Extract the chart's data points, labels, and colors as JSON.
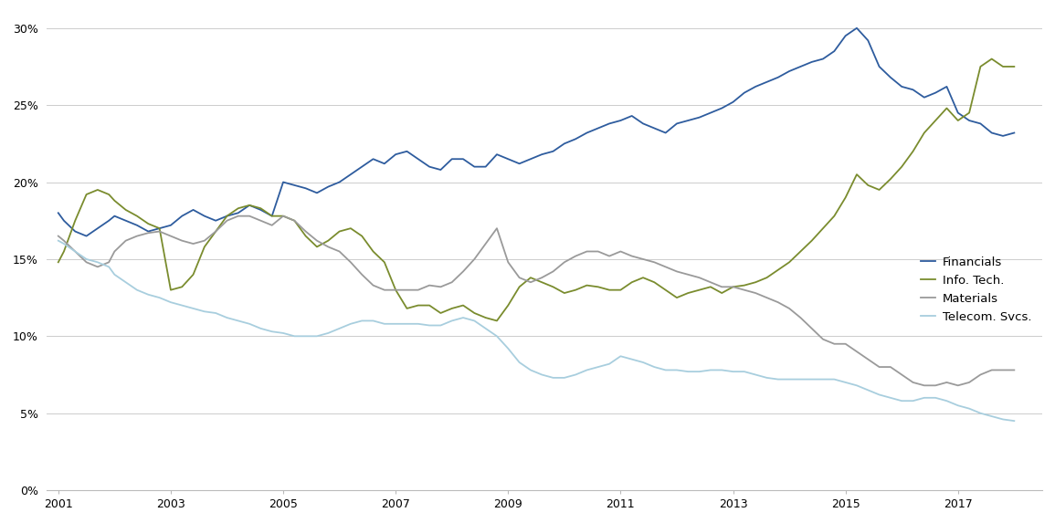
{
  "colors": {
    "Financials": "#2E5C9E",
    "Info. Tech.": "#7A8C2E",
    "Materials": "#9A9A9A",
    "Telecom. Svcs.": "#A8CEDE"
  },
  "legend_labels": [
    "Financials",
    "Info. Tech.",
    "Materials",
    "Telecom. Svcs."
  ],
  "ylim": [
    0.0,
    0.31
  ],
  "yticks": [
    0.0,
    0.05,
    0.1,
    0.15,
    0.2,
    0.25,
    0.3
  ],
  "xticks": [
    2001,
    2003,
    2005,
    2007,
    2009,
    2011,
    2013,
    2015,
    2017
  ],
  "xlim": [
    2000.8,
    2018.5
  ],
  "background_color": "#FFFFFF",
  "grid_color": "#CCCCCC",
  "financials_x": [
    2001.0,
    2001.1,
    2001.3,
    2001.5,
    2001.7,
    2001.9,
    2002.0,
    2002.2,
    2002.4,
    2002.6,
    2002.8,
    2003.0,
    2003.2,
    2003.4,
    2003.6,
    2003.8,
    2004.0,
    2004.2,
    2004.4,
    2004.6,
    2004.8,
    2005.0,
    2005.2,
    2005.4,
    2005.6,
    2005.8,
    2006.0,
    2006.2,
    2006.4,
    2006.6,
    2006.8,
    2007.0,
    2007.2,
    2007.4,
    2007.6,
    2007.8,
    2008.0,
    2008.2,
    2008.4,
    2008.6,
    2008.8,
    2009.0,
    2009.2,
    2009.4,
    2009.6,
    2009.8,
    2010.0,
    2010.2,
    2010.4,
    2010.6,
    2010.8,
    2011.0,
    2011.2,
    2011.4,
    2011.6,
    2011.8,
    2012.0,
    2012.2,
    2012.4,
    2012.6,
    2012.8,
    2013.0,
    2013.2,
    2013.4,
    2013.6,
    2013.8,
    2014.0,
    2014.2,
    2014.4,
    2014.6,
    2014.8,
    2015.0,
    2015.2,
    2015.4,
    2015.6,
    2015.8,
    2016.0,
    2016.2,
    2016.4,
    2016.6,
    2016.8,
    2017.0,
    2017.2,
    2017.4,
    2017.6,
    2017.8,
    2018.0
  ],
  "financials_y": [
    0.18,
    0.175,
    0.168,
    0.165,
    0.17,
    0.175,
    0.178,
    0.175,
    0.172,
    0.168,
    0.17,
    0.172,
    0.178,
    0.182,
    0.178,
    0.175,
    0.178,
    0.18,
    0.185,
    0.182,
    0.178,
    0.2,
    0.198,
    0.196,
    0.193,
    0.197,
    0.2,
    0.205,
    0.21,
    0.215,
    0.212,
    0.218,
    0.22,
    0.215,
    0.21,
    0.208,
    0.215,
    0.215,
    0.21,
    0.21,
    0.218,
    0.215,
    0.212,
    0.215,
    0.218,
    0.22,
    0.225,
    0.228,
    0.232,
    0.235,
    0.238,
    0.24,
    0.243,
    0.238,
    0.235,
    0.232,
    0.238,
    0.24,
    0.242,
    0.245,
    0.248,
    0.252,
    0.258,
    0.262,
    0.265,
    0.268,
    0.272,
    0.275,
    0.278,
    0.28,
    0.285,
    0.295,
    0.3,
    0.292,
    0.275,
    0.268,
    0.262,
    0.26,
    0.255,
    0.258,
    0.262,
    0.245,
    0.24,
    0.238,
    0.232,
    0.23,
    0.232
  ],
  "infotech_x": [
    2001.0,
    2001.1,
    2001.3,
    2001.5,
    2001.7,
    2001.9,
    2002.0,
    2002.2,
    2002.4,
    2002.6,
    2002.8,
    2003.0,
    2003.2,
    2003.4,
    2003.6,
    2003.8,
    2004.0,
    2004.2,
    2004.4,
    2004.6,
    2004.8,
    2005.0,
    2005.2,
    2005.4,
    2005.6,
    2005.8,
    2006.0,
    2006.2,
    2006.4,
    2006.6,
    2006.8,
    2007.0,
    2007.2,
    2007.4,
    2007.6,
    2007.8,
    2008.0,
    2008.2,
    2008.4,
    2008.6,
    2008.8,
    2009.0,
    2009.2,
    2009.4,
    2009.6,
    2009.8,
    2010.0,
    2010.2,
    2010.4,
    2010.6,
    2010.8,
    2011.0,
    2011.2,
    2011.4,
    2011.6,
    2011.8,
    2012.0,
    2012.2,
    2012.4,
    2012.6,
    2012.8,
    2013.0,
    2013.2,
    2013.4,
    2013.6,
    2013.8,
    2014.0,
    2014.2,
    2014.4,
    2014.6,
    2014.8,
    2015.0,
    2015.2,
    2015.4,
    2015.6,
    2015.8,
    2016.0,
    2016.2,
    2016.4,
    2016.6,
    2016.8,
    2017.0,
    2017.2,
    2017.4,
    2017.6,
    2017.8,
    2018.0
  ],
  "infotech_y": [
    0.148,
    0.155,
    0.175,
    0.192,
    0.195,
    0.192,
    0.188,
    0.182,
    0.178,
    0.173,
    0.17,
    0.13,
    0.132,
    0.14,
    0.158,
    0.168,
    0.178,
    0.183,
    0.185,
    0.183,
    0.178,
    0.178,
    0.175,
    0.165,
    0.158,
    0.162,
    0.168,
    0.17,
    0.165,
    0.155,
    0.148,
    0.13,
    0.118,
    0.12,
    0.12,
    0.115,
    0.118,
    0.12,
    0.115,
    0.112,
    0.11,
    0.12,
    0.132,
    0.138,
    0.135,
    0.132,
    0.128,
    0.13,
    0.133,
    0.132,
    0.13,
    0.13,
    0.135,
    0.138,
    0.135,
    0.13,
    0.125,
    0.128,
    0.13,
    0.132,
    0.128,
    0.132,
    0.133,
    0.135,
    0.138,
    0.143,
    0.148,
    0.155,
    0.162,
    0.17,
    0.178,
    0.19,
    0.205,
    0.198,
    0.195,
    0.202,
    0.21,
    0.22,
    0.232,
    0.24,
    0.248,
    0.24,
    0.245,
    0.275,
    0.28,
    0.275,
    0.275
  ],
  "materials_x": [
    2001.0,
    2001.1,
    2001.3,
    2001.5,
    2001.7,
    2001.9,
    2002.0,
    2002.2,
    2002.4,
    2002.6,
    2002.8,
    2003.0,
    2003.2,
    2003.4,
    2003.6,
    2003.8,
    2004.0,
    2004.2,
    2004.4,
    2004.6,
    2004.8,
    2005.0,
    2005.2,
    2005.4,
    2005.6,
    2005.8,
    2006.0,
    2006.2,
    2006.4,
    2006.6,
    2006.8,
    2007.0,
    2007.2,
    2007.4,
    2007.6,
    2007.8,
    2008.0,
    2008.2,
    2008.4,
    2008.6,
    2008.8,
    2009.0,
    2009.2,
    2009.4,
    2009.6,
    2009.8,
    2010.0,
    2010.2,
    2010.4,
    2010.6,
    2010.8,
    2011.0,
    2011.2,
    2011.4,
    2011.6,
    2011.8,
    2012.0,
    2012.2,
    2012.4,
    2012.6,
    2012.8,
    2013.0,
    2013.2,
    2013.4,
    2013.6,
    2013.8,
    2014.0,
    2014.2,
    2014.4,
    2014.6,
    2014.8,
    2015.0,
    2015.2,
    2015.4,
    2015.6,
    2015.8,
    2016.0,
    2016.2,
    2016.4,
    2016.6,
    2016.8,
    2017.0,
    2017.2,
    2017.4,
    2017.6,
    2017.8,
    2018.0
  ],
  "materials_y": [
    0.165,
    0.162,
    0.155,
    0.148,
    0.145,
    0.148,
    0.155,
    0.162,
    0.165,
    0.167,
    0.168,
    0.165,
    0.162,
    0.16,
    0.162,
    0.168,
    0.175,
    0.178,
    0.178,
    0.175,
    0.172,
    0.178,
    0.175,
    0.168,
    0.162,
    0.158,
    0.155,
    0.148,
    0.14,
    0.133,
    0.13,
    0.13,
    0.13,
    0.13,
    0.133,
    0.132,
    0.135,
    0.142,
    0.15,
    0.16,
    0.17,
    0.148,
    0.138,
    0.135,
    0.138,
    0.142,
    0.148,
    0.152,
    0.155,
    0.155,
    0.152,
    0.155,
    0.152,
    0.15,
    0.148,
    0.145,
    0.142,
    0.14,
    0.138,
    0.135,
    0.132,
    0.132,
    0.13,
    0.128,
    0.125,
    0.122,
    0.118,
    0.112,
    0.105,
    0.098,
    0.095,
    0.095,
    0.09,
    0.085,
    0.08,
    0.08,
    0.075,
    0.07,
    0.068,
    0.068,
    0.07,
    0.068,
    0.07,
    0.075,
    0.078,
    0.078,
    0.078
  ],
  "telecom_x": [
    2001.0,
    2001.1,
    2001.3,
    2001.5,
    2001.7,
    2001.9,
    2002.0,
    2002.2,
    2002.4,
    2002.6,
    2002.8,
    2003.0,
    2003.2,
    2003.4,
    2003.6,
    2003.8,
    2004.0,
    2004.2,
    2004.4,
    2004.6,
    2004.8,
    2005.0,
    2005.2,
    2005.4,
    2005.6,
    2005.8,
    2006.0,
    2006.2,
    2006.4,
    2006.6,
    2006.8,
    2007.0,
    2007.2,
    2007.4,
    2007.6,
    2007.8,
    2008.0,
    2008.2,
    2008.4,
    2008.6,
    2008.8,
    2009.0,
    2009.2,
    2009.4,
    2009.6,
    2009.8,
    2010.0,
    2010.2,
    2010.4,
    2010.6,
    2010.8,
    2011.0,
    2011.2,
    2011.4,
    2011.6,
    2011.8,
    2012.0,
    2012.2,
    2012.4,
    2012.6,
    2012.8,
    2013.0,
    2013.2,
    2013.4,
    2013.6,
    2013.8,
    2014.0,
    2014.2,
    2014.4,
    2014.6,
    2014.8,
    2015.0,
    2015.2,
    2015.4,
    2015.6,
    2015.8,
    2016.0,
    2016.2,
    2016.4,
    2016.6,
    2016.8,
    2017.0,
    2017.2,
    2017.4,
    2017.6,
    2017.8,
    2018.0
  ],
  "telecom_y": [
    0.162,
    0.16,
    0.155,
    0.15,
    0.148,
    0.145,
    0.14,
    0.135,
    0.13,
    0.127,
    0.125,
    0.122,
    0.12,
    0.118,
    0.116,
    0.115,
    0.112,
    0.11,
    0.108,
    0.105,
    0.103,
    0.102,
    0.1,
    0.1,
    0.1,
    0.102,
    0.105,
    0.108,
    0.11,
    0.11,
    0.108,
    0.108,
    0.108,
    0.108,
    0.107,
    0.107,
    0.11,
    0.112,
    0.11,
    0.105,
    0.1,
    0.092,
    0.083,
    0.078,
    0.075,
    0.073,
    0.073,
    0.075,
    0.078,
    0.08,
    0.082,
    0.087,
    0.085,
    0.083,
    0.08,
    0.078,
    0.078,
    0.077,
    0.077,
    0.078,
    0.078,
    0.077,
    0.077,
    0.075,
    0.073,
    0.072,
    0.072,
    0.072,
    0.072,
    0.072,
    0.072,
    0.07,
    0.068,
    0.065,
    0.062,
    0.06,
    0.058,
    0.058,
    0.06,
    0.06,
    0.058,
    0.055,
    0.053,
    0.05,
    0.048,
    0.046,
    0.045
  ]
}
